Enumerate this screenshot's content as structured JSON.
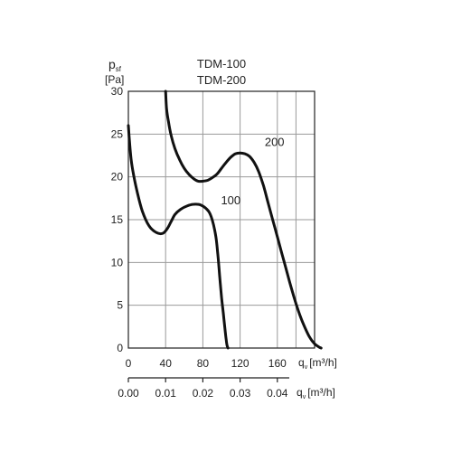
{
  "chart_data": {
    "type": "line",
    "title": [
      "TDM-100",
      "TDM-200"
    ],
    "ylabel": {
      "symbol": "p",
      "sub": "sf",
      "unit": "[Pa]"
    },
    "xlabel": {
      "symbol": "q",
      "sub": "v",
      "unit": "[m³/h]"
    },
    "xlabel2": {
      "symbol": "q",
      "sub": "v",
      "unit": "[m³/h]"
    },
    "xlim": [
      0,
      200
    ],
    "ylim": [
      0,
      30
    ],
    "x_ticks": [
      0,
      40,
      80,
      120,
      160
    ],
    "y_ticks": [
      0,
      5,
      10,
      15,
      20,
      25,
      30
    ],
    "x2_ticks": [
      "0.00",
      "0.01",
      "0.02",
      "0.03",
      "0.04"
    ],
    "x2_tick_positions": [
      0,
      40,
      80,
      120,
      160
    ],
    "grid": true,
    "series": [
      {
        "name": "100",
        "x": [
          0,
          1,
          3,
          6,
          10,
          15,
          22,
          30,
          37,
          42,
          46,
          50,
          56,
          63,
          70,
          78,
          86,
          90,
          94,
          96,
          98,
          100,
          102,
          104,
          105,
          106,
          107
        ],
        "y": [
          26,
          24.5,
          22,
          20,
          18,
          16,
          14.3,
          13.5,
          13.4,
          14,
          14.8,
          15.6,
          16.2,
          16.6,
          16.8,
          16.7,
          16,
          15,
          13,
          11,
          8.5,
          6,
          4,
          2,
          1,
          0.3,
          0
        ]
      },
      {
        "name": "200",
        "x": [
          40,
          41,
          43,
          46,
          50,
          55,
          60,
          65,
          70,
          75,
          80,
          85,
          90,
          95,
          100,
          105,
          110,
          115,
          120,
          125,
          130,
          135,
          140,
          145,
          150,
          155,
          160,
          165,
          170,
          175,
          180,
          185,
          190,
          195,
          200,
          205,
          207
        ],
        "y": [
          30,
          28,
          26.5,
          24.8,
          23.3,
          22,
          21,
          20.3,
          19.8,
          19.5,
          19.5,
          19.6,
          19.9,
          20.3,
          21,
          21.7,
          22.3,
          22.7,
          22.8,
          22.7,
          22.4,
          21.7,
          20.6,
          19,
          17,
          15,
          13,
          11,
          9,
          7,
          5.2,
          3.6,
          2.3,
          1.2,
          0.5,
          0.1,
          0
        ]
      }
    ],
    "annotations": [
      {
        "text": "100",
        "x": 110,
        "y": 16.8
      },
      {
        "text": "200",
        "x": 157,
        "y": 23.6
      }
    ]
  }
}
